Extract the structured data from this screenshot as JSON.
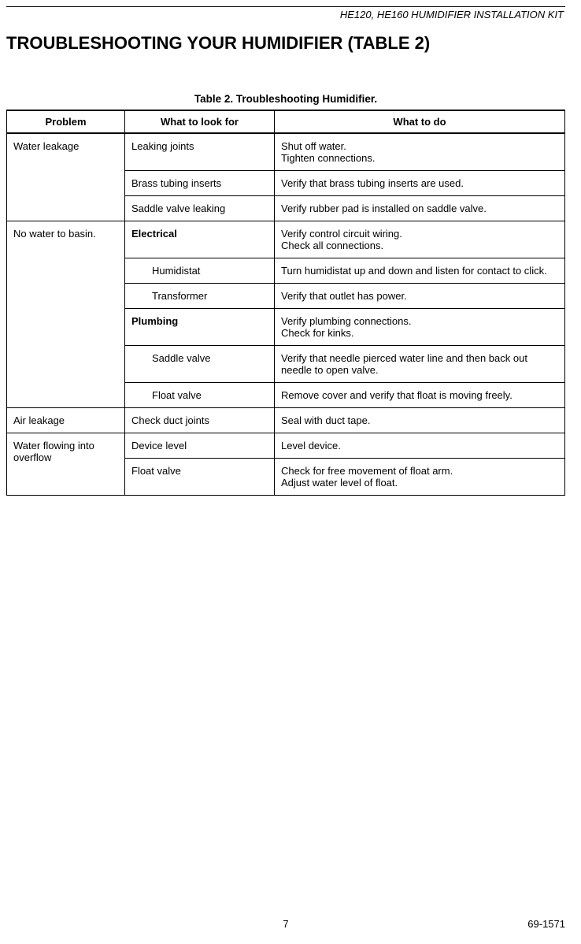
{
  "header": {
    "doc_title": "HE120, HE160 HUMIDIFIER INSTALLATION KIT"
  },
  "section": {
    "title": "TROUBLESHOOTING YOUR HUMIDIFIER (TABLE 2)"
  },
  "table": {
    "caption": "Table 2. Troubleshooting Humidifier.",
    "columns": [
      "Problem",
      "What to look for",
      "What to do"
    ],
    "groups": [
      {
        "problem": "Water leakage",
        "rows": [
          {
            "look": "Leaking joints",
            "look_bold": false,
            "look_indent": false,
            "do": "Shut off water.\nTighten connections."
          },
          {
            "look": "Brass tubing inserts",
            "look_bold": false,
            "look_indent": false,
            "do": "Verify that brass tubing inserts are used."
          },
          {
            "look": "Saddle valve leaking",
            "look_bold": false,
            "look_indent": false,
            "do": "Verify rubber pad is installed on saddle valve."
          }
        ]
      },
      {
        "problem": "No water to basin.",
        "rows": [
          {
            "look": "Electrical",
            "look_bold": true,
            "look_indent": false,
            "do": "Verify control circuit wiring.\nCheck all connections."
          },
          {
            "look": "Humidistat",
            "look_bold": false,
            "look_indent": true,
            "do": "Turn humidistat up and down and listen for contact to click."
          },
          {
            "look": "Transformer",
            "look_bold": false,
            "look_indent": true,
            "do": "Verify that outlet has power."
          },
          {
            "look": "Plumbing",
            "look_bold": true,
            "look_indent": false,
            "do": "Verify plumbing connections.\nCheck for kinks."
          },
          {
            "look": "Saddle valve",
            "look_bold": false,
            "look_indent": true,
            "do": "Verify that needle pierced water line and then back out needle to open valve."
          },
          {
            "look": "Float valve",
            "look_bold": false,
            "look_indent": true,
            "do": "Remove cover and verify that float is moving freely."
          }
        ]
      },
      {
        "problem": "Air leakage",
        "rows": [
          {
            "look": "Check duct joints",
            "look_bold": false,
            "look_indent": false,
            "do": "Seal with duct tape."
          }
        ]
      },
      {
        "problem": "Water flowing into overflow",
        "rows": [
          {
            "look": "Device level",
            "look_bold": false,
            "look_indent": false,
            "do": "Level device."
          },
          {
            "look": "Float valve",
            "look_bold": false,
            "look_indent": false,
            "do": "Check for free movement of float arm.\nAdjust water level of float."
          }
        ]
      }
    ]
  },
  "footer": {
    "page_number": "7",
    "doc_number": "69-1571"
  }
}
